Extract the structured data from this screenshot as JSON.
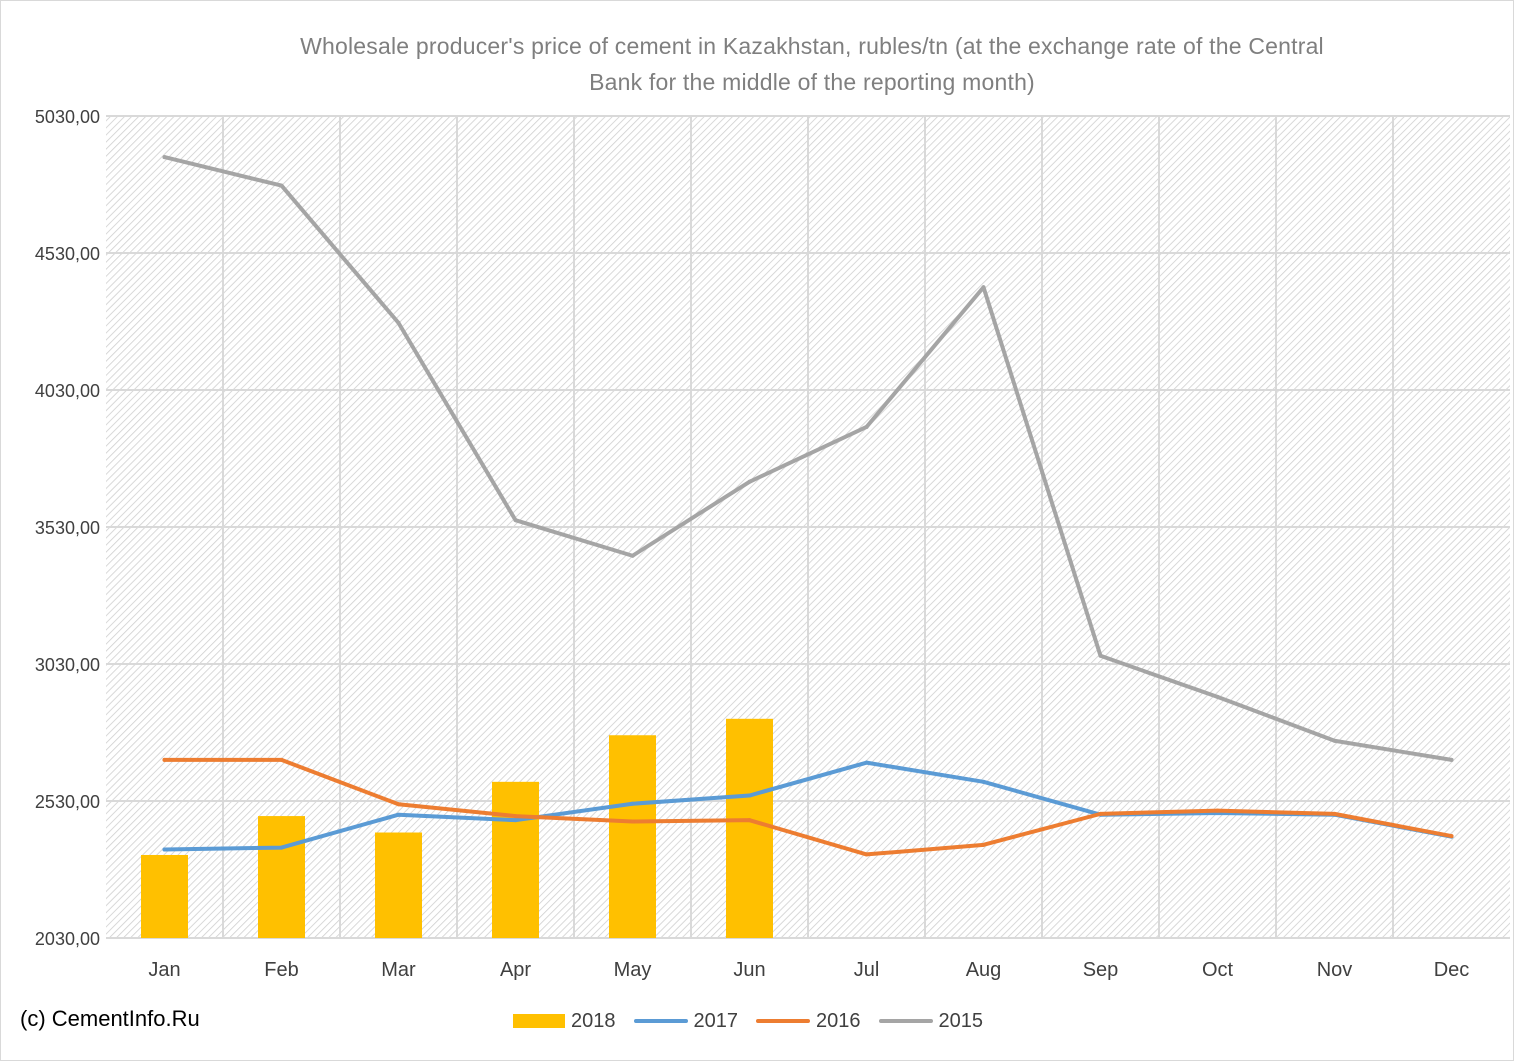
{
  "chart_data": {
    "type": "bar",
    "title_line1": "Wholesale producer's price of cement in Kazakhstan, rubles/tn (at the exchange rate of the Central",
    "title_line2": "Bank for the middle of the reporting month)",
    "categories": [
      "Jan",
      "Feb",
      "Mar",
      "Apr",
      "May",
      "Jun",
      "Jul",
      "Aug",
      "Sep",
      "Oct",
      "Nov",
      "Dec"
    ],
    "ylim": [
      2030,
      5030
    ],
    "yticks": [
      "2030,00",
      "2530,00",
      "3030,00",
      "3530,00",
      "4030,00",
      "4530,00",
      "5030,00"
    ],
    "ytick_values": [
      2030,
      2530,
      3030,
      3530,
      4030,
      4530,
      5030
    ],
    "grid": true,
    "legend_position": "bottom",
    "series": [
      {
        "name": "2018",
        "kind": "bar",
        "color": "#ffc000",
        "values": [
          2333,
          2475,
          2415,
          2600,
          2770,
          2830,
          null,
          null,
          null,
          null,
          null,
          null
        ]
      },
      {
        "name": "2017",
        "kind": "line",
        "color": "#5b9bd5",
        "values": [
          2353,
          2360,
          2480,
          2460,
          2520,
          2550,
          2670,
          2600,
          2480,
          2486,
          2480,
          2400
        ]
      },
      {
        "name": "2016",
        "kind": "line",
        "color": "#ed7d31",
        "values": [
          2680,
          2680,
          2518,
          2475,
          2455,
          2460,
          2335,
          2370,
          2483,
          2495,
          2483,
          2402
        ]
      },
      {
        "name": "2015",
        "kind": "line",
        "color": "#a5a5a5",
        "values": [
          4880,
          4776,
          4275,
          3555,
          3425,
          3695,
          3895,
          4405,
          3060,
          2910,
          2750,
          2680
        ]
      }
    ]
  },
  "copyright": "(c) CementInfo.Ru"
}
